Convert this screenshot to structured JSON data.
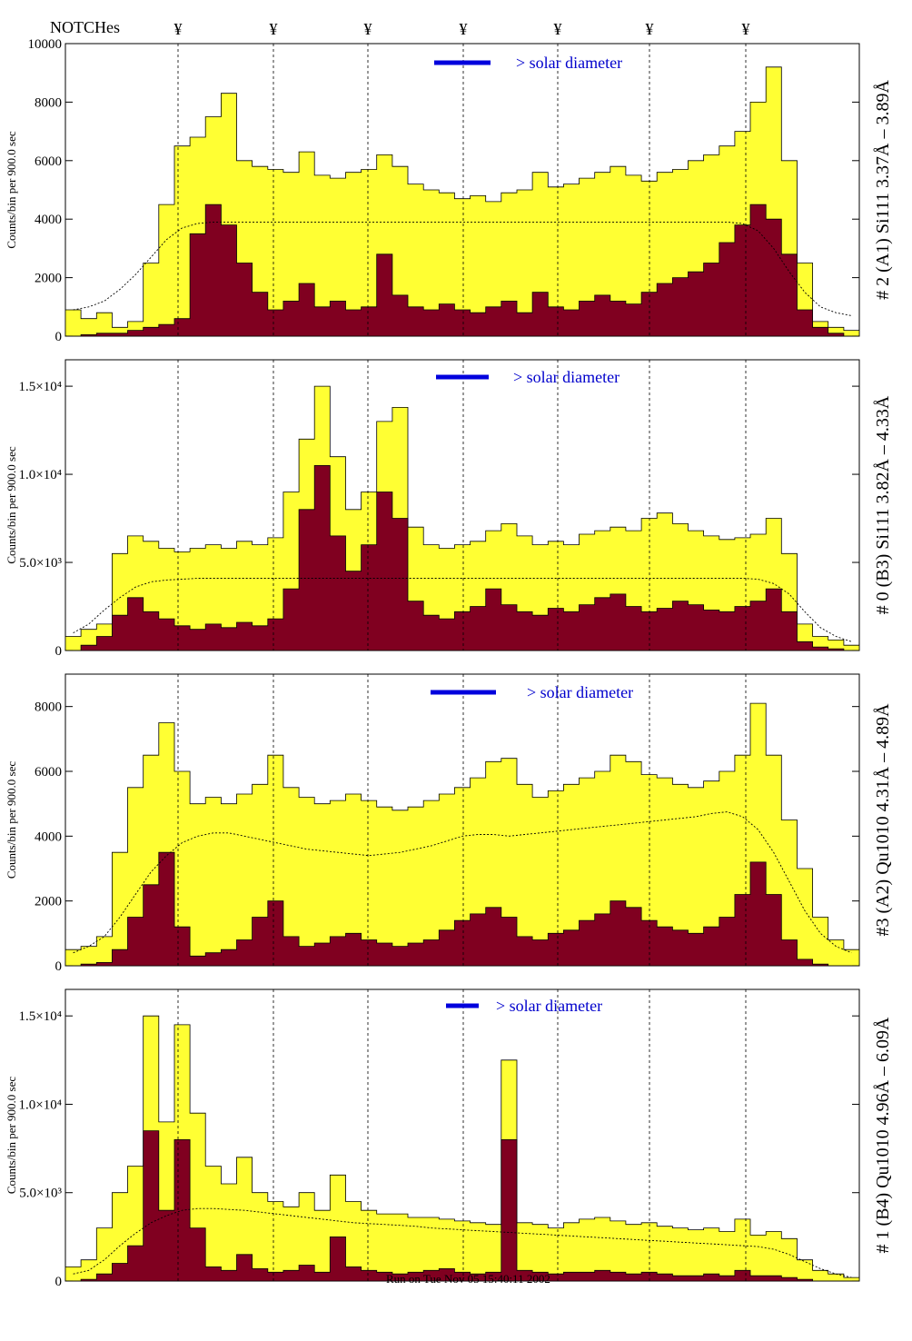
{
  "header": {
    "notches_label": "NOTCHes",
    "notch_marker": "¥",
    "notch_positions": [
      1,
      2,
      3,
      4,
      5,
      6,
      7
    ]
  },
  "footer": {
    "run_text": "Run on Tue Nov 05 15:40:11 2002"
  },
  "colors": {
    "total": "#ffff33",
    "peak": "#800020",
    "legend_bar": "#0000dd",
    "text": "#000000",
    "legend_text": "#0000cc"
  },
  "chart_data": [
    {
      "type": "area",
      "title": "# 2 (A1) Si111  3.37Å – 3.89Å",
      "ylabel": "Counts/bin per    900.0 sec",
      "legend": "> solar diameter",
      "ylim": [
        0,
        10000
      ],
      "yticks": [
        "0",
        "2000",
        "4000",
        "6000",
        "8000",
        "10000"
      ],
      "ytick_values": [
        0,
        2000,
        4000,
        6000,
        8000,
        10000
      ],
      "x": [
        0,
        0.02,
        0.04,
        0.06,
        0.08,
        0.1,
        0.12,
        0.14,
        0.16,
        0.18,
        0.2,
        0.22,
        0.24,
        0.26,
        0.28,
        0.3,
        0.32,
        0.34,
        0.36,
        0.38,
        0.4,
        0.42,
        0.44,
        0.46,
        0.48,
        0.5,
        0.52,
        0.54,
        0.56,
        0.58,
        0.6,
        0.62,
        0.64,
        0.66,
        0.68,
        0.7,
        0.72,
        0.74,
        0.76,
        0.78,
        0.8,
        0.82,
        0.84,
        0.86,
        0.88,
        0.9,
        0.92,
        0.94,
        0.96,
        0.98,
        1.0
      ],
      "series": [
        {
          "values": [
            900,
            600,
            800,
            300,
            500,
            2500,
            4500,
            6500,
            6800,
            7500,
            8300,
            6000,
            5800,
            5700,
            5600,
            6300,
            5500,
            5400,
            5600,
            5700,
            6200,
            5800,
            5200,
            5000,
            4900,
            4700,
            4800,
            4600,
            4900,
            5000,
            5600,
            5100,
            5200,
            5400,
            5600,
            5800,
            5500,
            5300,
            5600,
            5700,
            6000,
            6200,
            6500,
            7000,
            8000,
            9200,
            6000,
            2500,
            500,
            300,
            200
          ]
        },
        {
          "values": [
            0,
            50,
            100,
            100,
            200,
            300,
            400,
            600,
            3500,
            4500,
            3800,
            2500,
            1500,
            900,
            1200,
            1800,
            1000,
            1200,
            900,
            1000,
            2800,
            1400,
            1000,
            900,
            1100,
            900,
            800,
            1000,
            1200,
            800,
            1500,
            1000,
            900,
            1200,
            1400,
            1200,
            1100,
            1500,
            1800,
            2000,
            2200,
            2500,
            3200,
            3800,
            4500,
            4000,
            2800,
            900,
            300,
            100,
            0
          ]
        },
        {
          "values": [
            900,
            1000,
            1200,
            1600,
            2100,
            2700,
            3300,
            3700,
            3850,
            3900,
            3900,
            3900,
            3900,
            3900,
            3900,
            3900,
            3900,
            3900,
            3900,
            3900,
            3900,
            3900,
            3900,
            3900,
            3900,
            3900,
            3900,
            3900,
            3900,
            3900,
            3900,
            3900,
            3900,
            3900,
            3900,
            3900,
            3900,
            3900,
            3900,
            3900,
            3900,
            3900,
            3900,
            3850,
            3600,
            3000,
            2200,
            1500,
            1000,
            800,
            700
          ]
        }
      ]
    },
    {
      "type": "area",
      "title": "# 0 (B3) Si111  3.82Å – 4.33Å",
      "ylabel": "Counts/bin per    900.0 sec",
      "legend": "> solar diameter",
      "ylim": [
        0,
        16500
      ],
      "yticks": [
        "0",
        "5.0×10³",
        "1.0×10⁴",
        "1.5×10⁴"
      ],
      "ytick_values": [
        0,
        5000,
        10000,
        15000
      ],
      "x": [
        0,
        0.02,
        0.04,
        0.06,
        0.08,
        0.1,
        0.12,
        0.14,
        0.16,
        0.18,
        0.2,
        0.22,
        0.24,
        0.26,
        0.28,
        0.3,
        0.32,
        0.34,
        0.36,
        0.38,
        0.4,
        0.42,
        0.44,
        0.46,
        0.48,
        0.5,
        0.52,
        0.54,
        0.56,
        0.58,
        0.6,
        0.62,
        0.64,
        0.66,
        0.68,
        0.7,
        0.72,
        0.74,
        0.76,
        0.78,
        0.8,
        0.82,
        0.84,
        0.86,
        0.88,
        0.9,
        0.92,
        0.94,
        0.96,
        0.98,
        1.0
      ],
      "series": [
        {
          "values": [
            800,
            1200,
            1500,
            5500,
            6500,
            6200,
            5800,
            5600,
            5800,
            6000,
            5800,
            6200,
            6000,
            6400,
            9000,
            12000,
            15000,
            11000,
            8000,
            9000,
            13000,
            13800,
            7000,
            6000,
            5800,
            6000,
            6200,
            6800,
            7200,
            6500,
            6000,
            6200,
            6000,
            6600,
            6800,
            7000,
            6800,
            7500,
            7800,
            7200,
            6800,
            6500,
            6300,
            6400,
            6600,
            7500,
            5500,
            1500,
            800,
            600,
            300
          ]
        },
        {
          "values": [
            0,
            300,
            800,
            2000,
            3000,
            2200,
            1800,
            1400,
            1200,
            1500,
            1300,
            1600,
            1400,
            1800,
            3500,
            8000,
            10500,
            6500,
            4500,
            6000,
            9000,
            7500,
            2800,
            2000,
            1800,
            2200,
            2500,
            3500,
            2600,
            2200,
            2000,
            2400,
            2200,
            2600,
            3000,
            3200,
            2500,
            2200,
            2400,
            2800,
            2600,
            2300,
            2200,
            2500,
            2800,
            3500,
            2200,
            500,
            200,
            100,
            0
          ]
        },
        {
          "values": [
            1000,
            1500,
            2300,
            3000,
            3600,
            3900,
            4000,
            4050,
            4100,
            4100,
            4100,
            4100,
            4100,
            4100,
            4100,
            4100,
            4100,
            4100,
            4100,
            4100,
            4100,
            4100,
            4100,
            4100,
            4100,
            4100,
            4100,
            4100,
            4100,
            4100,
            4100,
            4100,
            4100,
            4100,
            4100,
            4100,
            4100,
            4100,
            4100,
            4100,
            4100,
            4100,
            4100,
            4100,
            4050,
            3800,
            3200,
            2200,
            1300,
            800,
            500
          ]
        }
      ]
    },
    {
      "type": "area",
      "title": "#3 (A2) Qu1010  4.31Å – 4.89Å",
      "ylabel": "Counts/bin per    900.0 sec",
      "legend": "> solar diameter",
      "ylim": [
        0,
        9000
      ],
      "yticks": [
        "0",
        "2000",
        "4000",
        "6000",
        "8000"
      ],
      "ytick_values": [
        0,
        2000,
        4000,
        6000,
        8000
      ],
      "x": [
        0,
        0.02,
        0.04,
        0.06,
        0.08,
        0.1,
        0.12,
        0.14,
        0.16,
        0.18,
        0.2,
        0.22,
        0.24,
        0.26,
        0.28,
        0.3,
        0.32,
        0.34,
        0.36,
        0.38,
        0.4,
        0.42,
        0.44,
        0.46,
        0.48,
        0.5,
        0.52,
        0.54,
        0.56,
        0.58,
        0.6,
        0.62,
        0.64,
        0.66,
        0.68,
        0.7,
        0.72,
        0.74,
        0.76,
        0.78,
        0.8,
        0.82,
        0.84,
        0.86,
        0.88,
        0.9,
        0.92,
        0.94,
        0.96,
        0.98,
        1.0
      ],
      "series": [
        {
          "values": [
            500,
            600,
            900,
            3500,
            5500,
            6500,
            7500,
            6000,
            5000,
            5200,
            5000,
            5300,
            5600,
            6500,
            5500,
            5200,
            5000,
            5100,
            5300,
            5100,
            4900,
            4800,
            4900,
            5100,
            5300,
            5500,
            5800,
            6300,
            6400,
            5600,
            5200,
            5400,
            5600,
            5800,
            6000,
            6500,
            6300,
            5900,
            5800,
            5600,
            5500,
            5700,
            6000,
            6500,
            8100,
            6500,
            4500,
            3000,
            1500,
            800,
            500
          ]
        },
        {
          "values": [
            0,
            50,
            100,
            500,
            1500,
            2500,
            3500,
            1200,
            300,
            400,
            500,
            800,
            1500,
            2000,
            900,
            600,
            700,
            900,
            1000,
            800,
            700,
            600,
            700,
            800,
            1100,
            1400,
            1600,
            1800,
            1500,
            900,
            800,
            1000,
            1100,
            1400,
            1600,
            2000,
            1800,
            1400,
            1200,
            1100,
            1000,
            1200,
            1500,
            2200,
            3200,
            2200,
            800,
            200,
            50,
            0,
            0
          ]
        },
        {
          "values": [
            400,
            600,
            900,
            1500,
            2200,
            2900,
            3400,
            3800,
            4000,
            4100,
            4100,
            4000,
            3900,
            3800,
            3700,
            3600,
            3550,
            3500,
            3450,
            3400,
            3450,
            3500,
            3600,
            3700,
            3850,
            4000,
            4050,
            4050,
            4000,
            4050,
            4100,
            4150,
            4200,
            4250,
            4300,
            4350,
            4400,
            4450,
            4500,
            4550,
            4600,
            4700,
            4750,
            4600,
            4200,
            3500,
            2600,
            1700,
            1000,
            600,
            400
          ]
        }
      ]
    },
    {
      "type": "area",
      "title": "# 1 (B4) Qu1010 4.96Å – 6.09Å",
      "ylabel": "Counts/bin per    900.0 sec",
      "legend": "> solar diameter",
      "ylim": [
        0,
        16500
      ],
      "yticks": [
        "0",
        "5.0×10³",
        "1.0×10⁴",
        "1.5×10⁴"
      ],
      "ytick_values": [
        0,
        5000,
        10000,
        15000
      ],
      "x": [
        0,
        0.02,
        0.04,
        0.06,
        0.08,
        0.1,
        0.12,
        0.14,
        0.16,
        0.18,
        0.2,
        0.22,
        0.24,
        0.26,
        0.28,
        0.3,
        0.32,
        0.34,
        0.36,
        0.38,
        0.4,
        0.42,
        0.44,
        0.46,
        0.48,
        0.5,
        0.52,
        0.54,
        0.56,
        0.58,
        0.6,
        0.62,
        0.64,
        0.66,
        0.68,
        0.7,
        0.72,
        0.74,
        0.76,
        0.78,
        0.8,
        0.82,
        0.84,
        0.86,
        0.88,
        0.9,
        0.92,
        0.94,
        0.96,
        0.98,
        1.0
      ],
      "series": [
        {
          "values": [
            800,
            1200,
            3000,
            5000,
            6500,
            15000,
            9000,
            14500,
            9500,
            6500,
            5500,
            7000,
            5000,
            4500,
            4200,
            5000,
            4000,
            6000,
            4500,
            4000,
            3800,
            3800,
            3600,
            3600,
            3500,
            3400,
            3300,
            3200,
            12500,
            3300,
            3200,
            3000,
            3300,
            3500,
            3600,
            3400,
            3200,
            3300,
            3100,
            3000,
            2900,
            3000,
            2800,
            3500,
            2600,
            2800,
            2400,
            1200,
            600,
            400,
            200
          ]
        },
        {
          "values": [
            0,
            100,
            400,
            1000,
            2000,
            8500,
            4000,
            8000,
            3000,
            800,
            600,
            1500,
            700,
            500,
            600,
            900,
            500,
            2500,
            800,
            600,
            500,
            400,
            500,
            600,
            700,
            500,
            400,
            500,
            8000,
            600,
            500,
            400,
            500,
            500,
            600,
            500,
            400,
            500,
            400,
            300,
            300,
            400,
            300,
            600,
            300,
            300,
            200,
            100,
            0,
            0,
            0
          ]
        },
        {
          "values": [
            400,
            600,
            1200,
            2000,
            2700,
            3300,
            3700,
            4000,
            4100,
            4100,
            4050,
            4000,
            3900,
            3800,
            3700,
            3600,
            3500,
            3400,
            3300,
            3250,
            3200,
            3150,
            3100,
            3000,
            2950,
            2900,
            2850,
            2800,
            2750,
            2700,
            2650,
            2600,
            2550,
            2500,
            2450,
            2400,
            2350,
            2300,
            2250,
            2200,
            2150,
            2100,
            2050,
            2000,
            1950,
            1800,
            1500,
            1100,
            700,
            400,
            200
          ]
        }
      ]
    }
  ]
}
